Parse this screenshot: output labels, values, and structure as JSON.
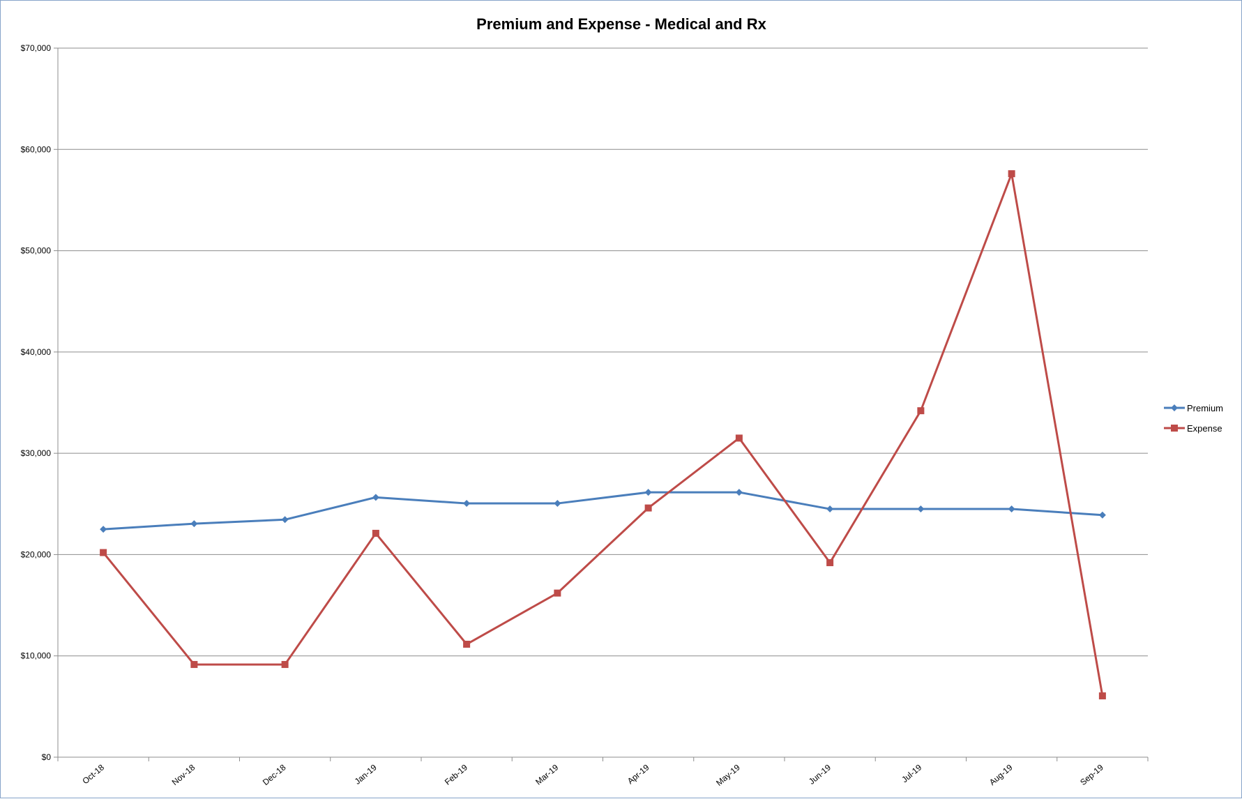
{
  "chart_data": {
    "type": "line",
    "title": "Premium and Expense - Medical and Rx",
    "xlabel": "",
    "ylabel": "",
    "categories": [
      "Oct-18",
      "Nov-18",
      "Dec-18",
      "Jan-19",
      "Feb-19",
      "Mar-19",
      "Apr-19",
      "May-19",
      "Jun-19",
      "Jul-19",
      "Aug-19",
      "Sep-19"
    ],
    "ylim": [
      0,
      70000
    ],
    "yticks": [
      0,
      10000,
      20000,
      30000,
      40000,
      50000,
      60000,
      70000
    ],
    "ytick_labels": [
      "$0",
      "$10,000",
      "$20,000",
      "$30,000",
      "$40,000",
      "$50,000",
      "$60,000",
      "$70,000"
    ],
    "grid": true,
    "legend_position": "right",
    "series": [
      {
        "name": "Premium",
        "color": "#4a7ebb",
        "marker": "diamond",
        "values": [
          22500,
          23050,
          23450,
          25650,
          25050,
          25050,
          26150,
          26150,
          24500,
          24500,
          24500,
          23900
        ]
      },
      {
        "name": "Expense",
        "color": "#be4b48",
        "marker": "square",
        "values": [
          20200,
          9150,
          9150,
          22100,
          11150,
          16200,
          24600,
          31500,
          19200,
          34200,
          57600,
          6050
        ]
      }
    ]
  }
}
